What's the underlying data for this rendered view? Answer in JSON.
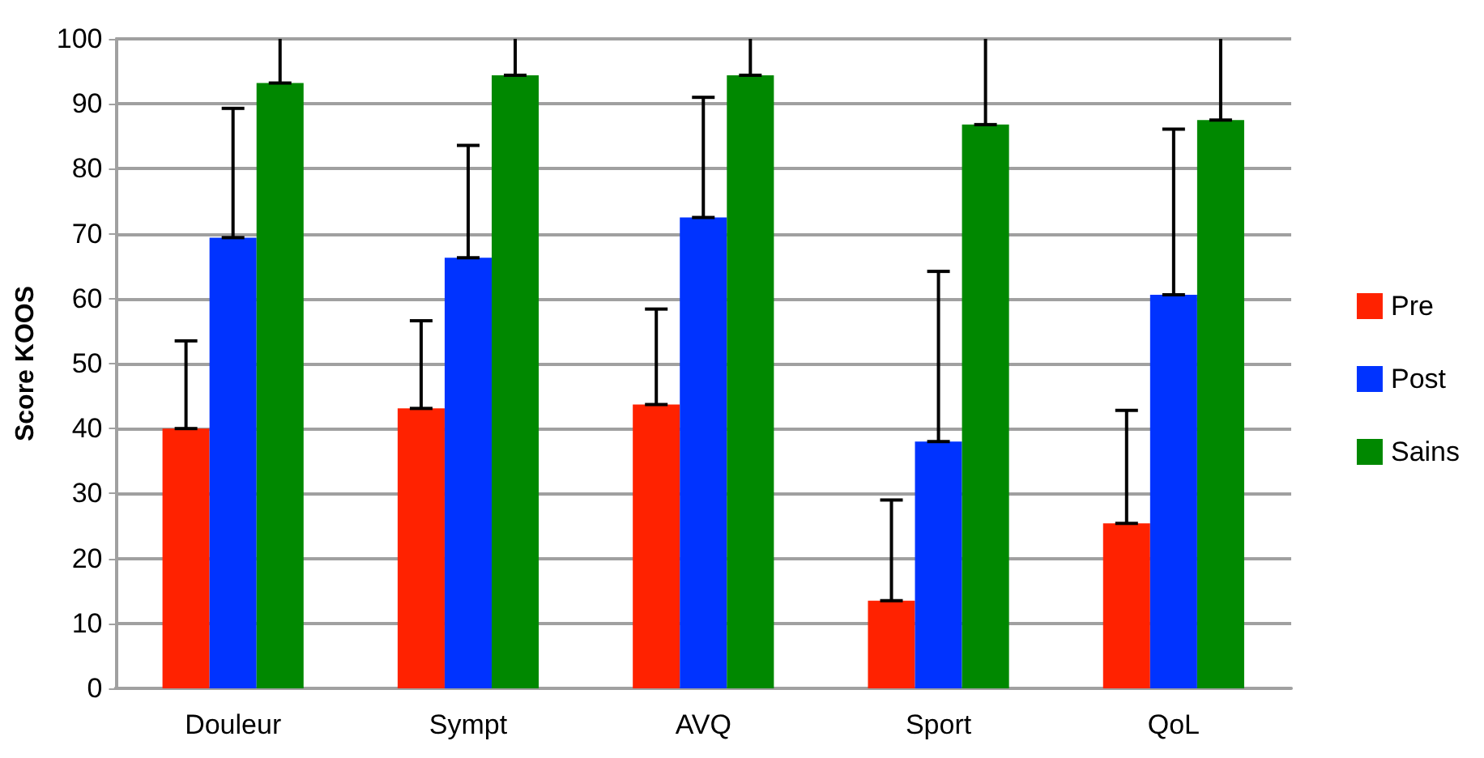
{
  "chart_data": {
    "type": "bar",
    "ylabel": "Score KOOS",
    "categories": [
      "Douleur",
      "Sympt",
      "AVQ",
      "Sport",
      "QoL"
    ],
    "series": [
      {
        "name": "Pre",
        "color": "#ff2200",
        "values": [
          40,
          43.1,
          43.7,
          13.5,
          25.4
        ],
        "errors": [
          [
            40,
            53.5
          ],
          [
            43.1,
            56.6
          ],
          [
            43.7,
            58.4
          ],
          [
            13.5,
            29
          ],
          [
            25.4,
            42.8
          ]
        ]
      },
      {
        "name": "Post",
        "color": "#0033ff",
        "values": [
          69.4,
          66.3,
          72.5,
          38,
          60.6
        ],
        "errors": [
          [
            69.4,
            89.3
          ],
          [
            66.3,
            83.6
          ],
          [
            72.5,
            91
          ],
          [
            38,
            64.2
          ],
          [
            60.6,
            86.1
          ]
        ]
      },
      {
        "name": "Sains",
        "color": "#008800",
        "values": [
          93.2,
          94.4,
          94.4,
          86.8,
          87.5
        ],
        "errors": [
          [
            93.2,
            100
          ],
          [
            94.4,
            100
          ],
          [
            94.4,
            100
          ],
          [
            86.8,
            100
          ],
          [
            87.5,
            100
          ]
        ]
      }
    ],
    "ylim": [
      0,
      100
    ],
    "yticks": [
      0,
      10,
      20,
      30,
      40,
      50,
      60,
      70,
      80,
      90,
      100
    ],
    "grid": "y",
    "legend": "right"
  }
}
